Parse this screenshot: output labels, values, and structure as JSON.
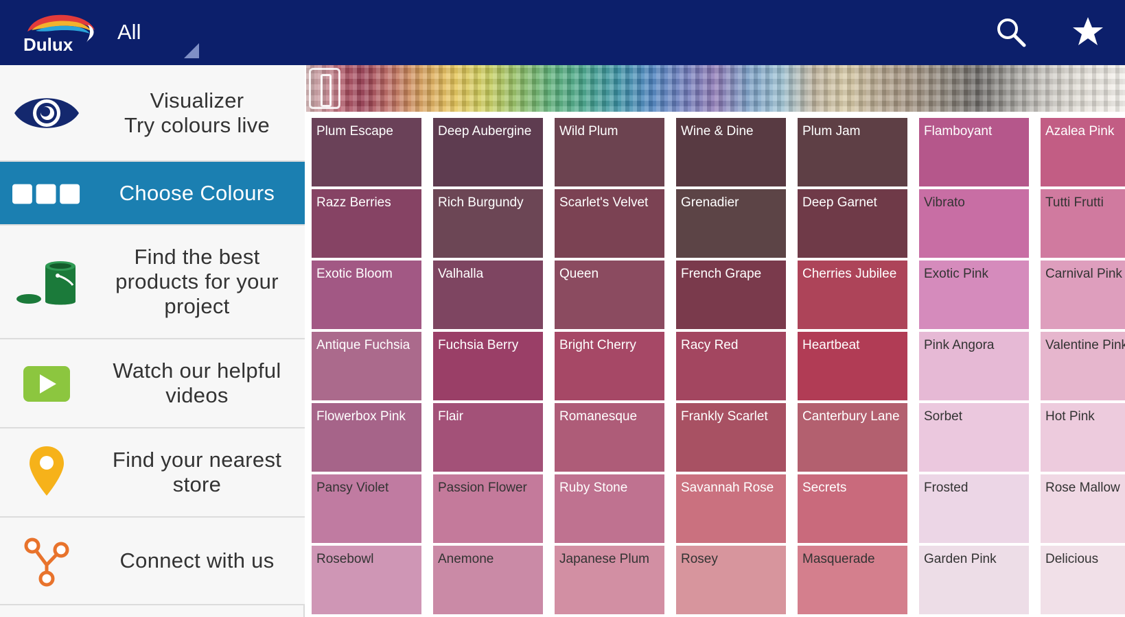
{
  "header": {
    "logo_text": "Dulux",
    "filter_label": "All",
    "bg_color": "#0c1f6b"
  },
  "toolbar": {
    "search_icon": "search-icon",
    "favorites_icon": "star-icon"
  },
  "sidebar": {
    "items": [
      {
        "label_line1": "Visualizer",
        "label_line2": "Try colours live",
        "icon": "eye-icon"
      },
      {
        "label": "Choose Colours",
        "icon": "swatches-icon",
        "active": true
      },
      {
        "label": "Find the best products for your project",
        "icon": "paint-can-icon"
      },
      {
        "label": "Watch our helpful videos",
        "icon": "play-icon"
      },
      {
        "label": "Find your nearest store",
        "icon": "location-pin-icon"
      },
      {
        "label": "Connect with us",
        "icon": "share-icon"
      }
    ],
    "active_color": "#1b7fb1"
  },
  "colours": {
    "columns": [
      [
        {
          "name": "Plum Escape",
          "hex": "#6a4158",
          "text": "#ffffff"
        },
        {
          "name": "Razz Berries",
          "hex": "#864364",
          "text": "#ffffff"
        },
        {
          "name": "Exotic Bloom",
          "hex": "#a25884",
          "text": "#ffffff"
        },
        {
          "name": "Antique Fuchsia",
          "hex": "#ab6a8c",
          "text": "#ffffff"
        },
        {
          "name": "Flowerbox Pink",
          "hex": "#a66489",
          "text": "#ffffff"
        },
        {
          "name": "Pansy Violet",
          "hex": "#c07ba1",
          "text": "#333333"
        },
        {
          "name": "Rosebowl",
          "hex": "#cf96b5",
          "text": "#333333"
        }
      ],
      [
        {
          "name": "Deep Aubergine",
          "hex": "#5e3c50",
          "text": "#ffffff"
        },
        {
          "name": "Rich Burgundy",
          "hex": "#6c4655",
          "text": "#ffffff"
        },
        {
          "name": "Valhalla",
          "hex": "#7e4561",
          "text": "#ffffff"
        },
        {
          "name": "Fuchsia Berry",
          "hex": "#9a3f67",
          "text": "#ffffff"
        },
        {
          "name": "Flair",
          "hex": "#a35178",
          "text": "#ffffff"
        },
        {
          "name": "Passion Flower",
          "hex": "#c47a9b",
          "text": "#333333"
        },
        {
          "name": "Anemone",
          "hex": "#ca8aa6",
          "text": "#333333"
        }
      ],
      [
        {
          "name": "Wild Plum",
          "hex": "#6c4350",
          "text": "#ffffff"
        },
        {
          "name": "Scarlet's Velvet",
          "hex": "#7b4253",
          "text": "#ffffff"
        },
        {
          "name": "Queen",
          "hex": "#8b4b60",
          "text": "#ffffff"
        },
        {
          "name": "Bright Cherry",
          "hex": "#a64866",
          "text": "#ffffff"
        },
        {
          "name": "Romanesque",
          "hex": "#ae5c78",
          "text": "#ffffff"
        },
        {
          "name": "Ruby Stone",
          "hex": "#bf7290",
          "text": "#ffffff"
        },
        {
          "name": "Japanese Plum",
          "hex": "#d28fa3",
          "text": "#333333"
        }
      ],
      [
        {
          "name": "Wine & Dine",
          "hex": "#583a42",
          "text": "#ffffff"
        },
        {
          "name": "Grenadier",
          "hex": "#5c4446",
          "text": "#ffffff"
        },
        {
          "name": "French Grape",
          "hex": "#7a3a4c",
          "text": "#ffffff"
        },
        {
          "name": "Racy Red",
          "hex": "#a34660",
          "text": "#ffffff"
        },
        {
          "name": "Frankly Scarlet",
          "hex": "#a85163",
          "text": "#ffffff"
        },
        {
          "name": "Savannah Rose",
          "hex": "#ca717f",
          "text": "#ffffff"
        },
        {
          "name": "Rosey",
          "hex": "#d7959d",
          "text": "#333333"
        }
      ],
      [
        {
          "name": "Plum Jam",
          "hex": "#5e3f45",
          "text": "#ffffff"
        },
        {
          "name": "Deep Garnet",
          "hex": "#6f3a48",
          "text": "#ffffff"
        },
        {
          "name": "Cherries Jubilee",
          "hex": "#ad4459",
          "text": "#ffffff"
        },
        {
          "name": "Heartbeat",
          "hex": "#b13c55",
          "text": "#ffffff"
        },
        {
          "name": "Canterbury Lane",
          "hex": "#b3606f",
          "text": "#ffffff"
        },
        {
          "name": "Secrets",
          "hex": "#c96a7c",
          "text": "#ffffff"
        },
        {
          "name": "Masquerade",
          "hex": "#d47f8d",
          "text": "#333333"
        }
      ],
      [
        {
          "name": "Flamboyant",
          "hex": "#b5578b",
          "text": "#ffffff"
        },
        {
          "name": "Vibrato",
          "hex": "#c86ea4",
          "text": "#333333"
        },
        {
          "name": "Exotic Pink",
          "hex": "#d58bbc",
          "text": "#333333"
        },
        {
          "name": "Pink Angora",
          "hex": "#e6b9d5",
          "text": "#333333"
        },
        {
          "name": "Sorbet",
          "hex": "#ebc8de",
          "text": "#333333"
        },
        {
          "name": "Frosted",
          "hex": "#ecd6e6",
          "text": "#333333"
        },
        {
          "name": "Garden Pink",
          "hex": "#eddde7",
          "text": "#333333"
        }
      ],
      [
        {
          "name": "Azalea Pink",
          "hex": "#c25d84",
          "text": "#ffffff"
        },
        {
          "name": "Tutti Frutti",
          "hex": "#d07a9f",
          "text": "#333333"
        },
        {
          "name": "Carnival Pink",
          "hex": "#de9ebd",
          "text": "#333333"
        },
        {
          "name": "Valentine Pink",
          "hex": "#e6b6cd",
          "text": "#333333"
        },
        {
          "name": "Hot Pink",
          "hex": "#edcbdd",
          "text": "#333333"
        },
        {
          "name": "Rose Mallow",
          "hex": "#f0d8e4",
          "text": "#333333"
        },
        {
          "name": "Delicious",
          "hex": "#f1e0e8",
          "text": "#333333"
        }
      ]
    ]
  }
}
